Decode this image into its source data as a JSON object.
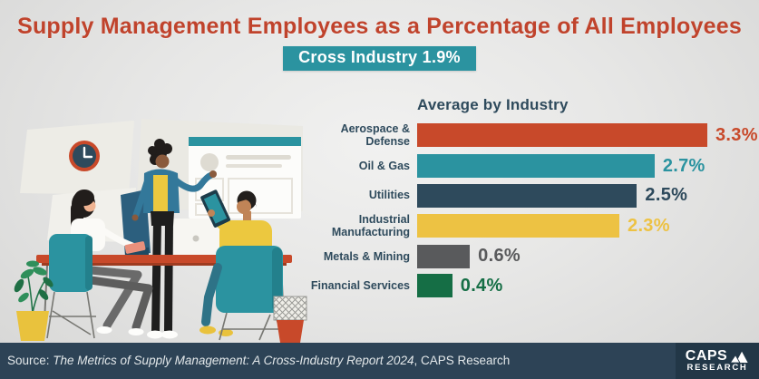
{
  "header": {
    "title": "Supply Management Employees as a Percentage of All Employees",
    "badge": "Cross Industry 1.9%"
  },
  "chart_data": {
    "type": "bar",
    "orientation": "horizontal",
    "title": "Average by Industry",
    "categories": [
      "Aerospace & Defense",
      "Oil & Gas",
      "Utilities",
      "Industrial Manufacturing",
      "Metals & Mining",
      "Financial Services"
    ],
    "values": [
      3.3,
      2.7,
      2.5,
      2.3,
      0.6,
      0.4
    ],
    "value_labels": [
      "3.3%",
      "2.7%",
      "2.5%",
      "2.3%",
      "0.6%",
      "0.4%"
    ],
    "bar_colors": [
      "#c8492a",
      "#2b93a0",
      "#2e4a5c",
      "#edc243",
      "#595a5c",
      "#156e45"
    ],
    "label_color": "#2e4a5c",
    "xlim": [
      0,
      3.4
    ],
    "grid": false,
    "legend": false,
    "cross_industry_average": "1.9%"
  },
  "footer": {
    "source_prefix": "Source: ",
    "source_title": "The Metrics of Supply Management: A Cross-Industry Report 2024",
    "source_suffix": ", CAPS Research",
    "logo_line1": "CAPS",
    "logo_line2": "RESEARCH"
  },
  "colors": {
    "title_red": "#c0432c",
    "badge_teal": "#2b93a0",
    "navy_text": "#2e4a5c",
    "footer_bg": "#2d4356",
    "footer_logo_bg": "#223747",
    "background": "#e7e7e6"
  }
}
